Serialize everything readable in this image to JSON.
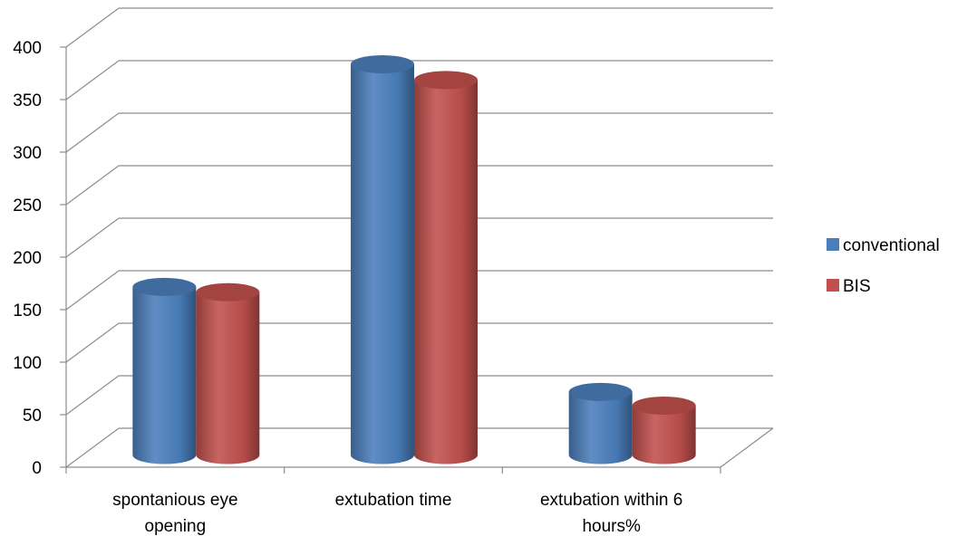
{
  "chart_data": {
    "type": "bar",
    "title": "",
    "xlabel": "",
    "ylabel": "",
    "categories": [
      [
        "spontanious eye",
        "opening"
      ],
      [
        "extubation time"
      ],
      [
        "extubation within 6",
        "hours%"
      ]
    ],
    "series": [
      {
        "name": "conventional",
        "values": [
          160,
          372,
          60
        ],
        "color": "#4a7ebb"
      },
      {
        "name": "BIS",
        "values": [
          155,
          357,
          47
        ],
        "color": "#c0504d"
      }
    ],
    "ylim": [
      0,
      400
    ],
    "yticks": [
      "0",
      "50",
      "100",
      "150",
      "200",
      "250",
      "300",
      "350",
      "400"
    ],
    "grid": true,
    "legend_position": "right",
    "style": "3d-cylinder"
  }
}
